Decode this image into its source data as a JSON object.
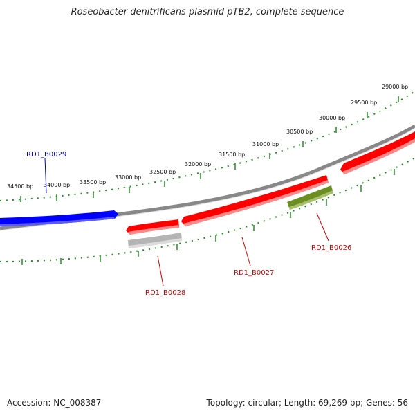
{
  "title": "Roseobacter denitrificans plasmid pTB2, complete sequence",
  "footer": {
    "accession": "Accession: NC_008387",
    "summary": "Topology: circular; Length: 69,269 bp; Genes: 56"
  },
  "ruler": {
    "unit": "bp",
    "labels": [
      "29000 bp",
      "29500 bp",
      "30000 bp",
      "30500 bp",
      "31000 bp",
      "31500 bp",
      "32000 bp",
      "32500 bp",
      "33000 bp",
      "33500 bp",
      "34000 bp",
      "34500 bp"
    ]
  },
  "genes": [
    {
      "id": "RD1_B0026",
      "label": "RD1_B0026",
      "color": "#cc0000"
    },
    {
      "id": "RD1_B0027",
      "label": "RD1_B0027",
      "color": "#cc0000"
    },
    {
      "id": "RD1_B0028",
      "label": "RD1_B0028",
      "color": "#cc0000"
    },
    {
      "id": "RD1_B0029",
      "label": "RD1_B0029",
      "color": "#0000aa"
    }
  ],
  "colors": {
    "forward_gene": "#ff0000",
    "blue_gene": "#0000ff",
    "rna_gene": "#6b8e23",
    "pseudo_gene": "#bbbbbb",
    "backbone": "#888888",
    "ticks": "#228b22"
  }
}
